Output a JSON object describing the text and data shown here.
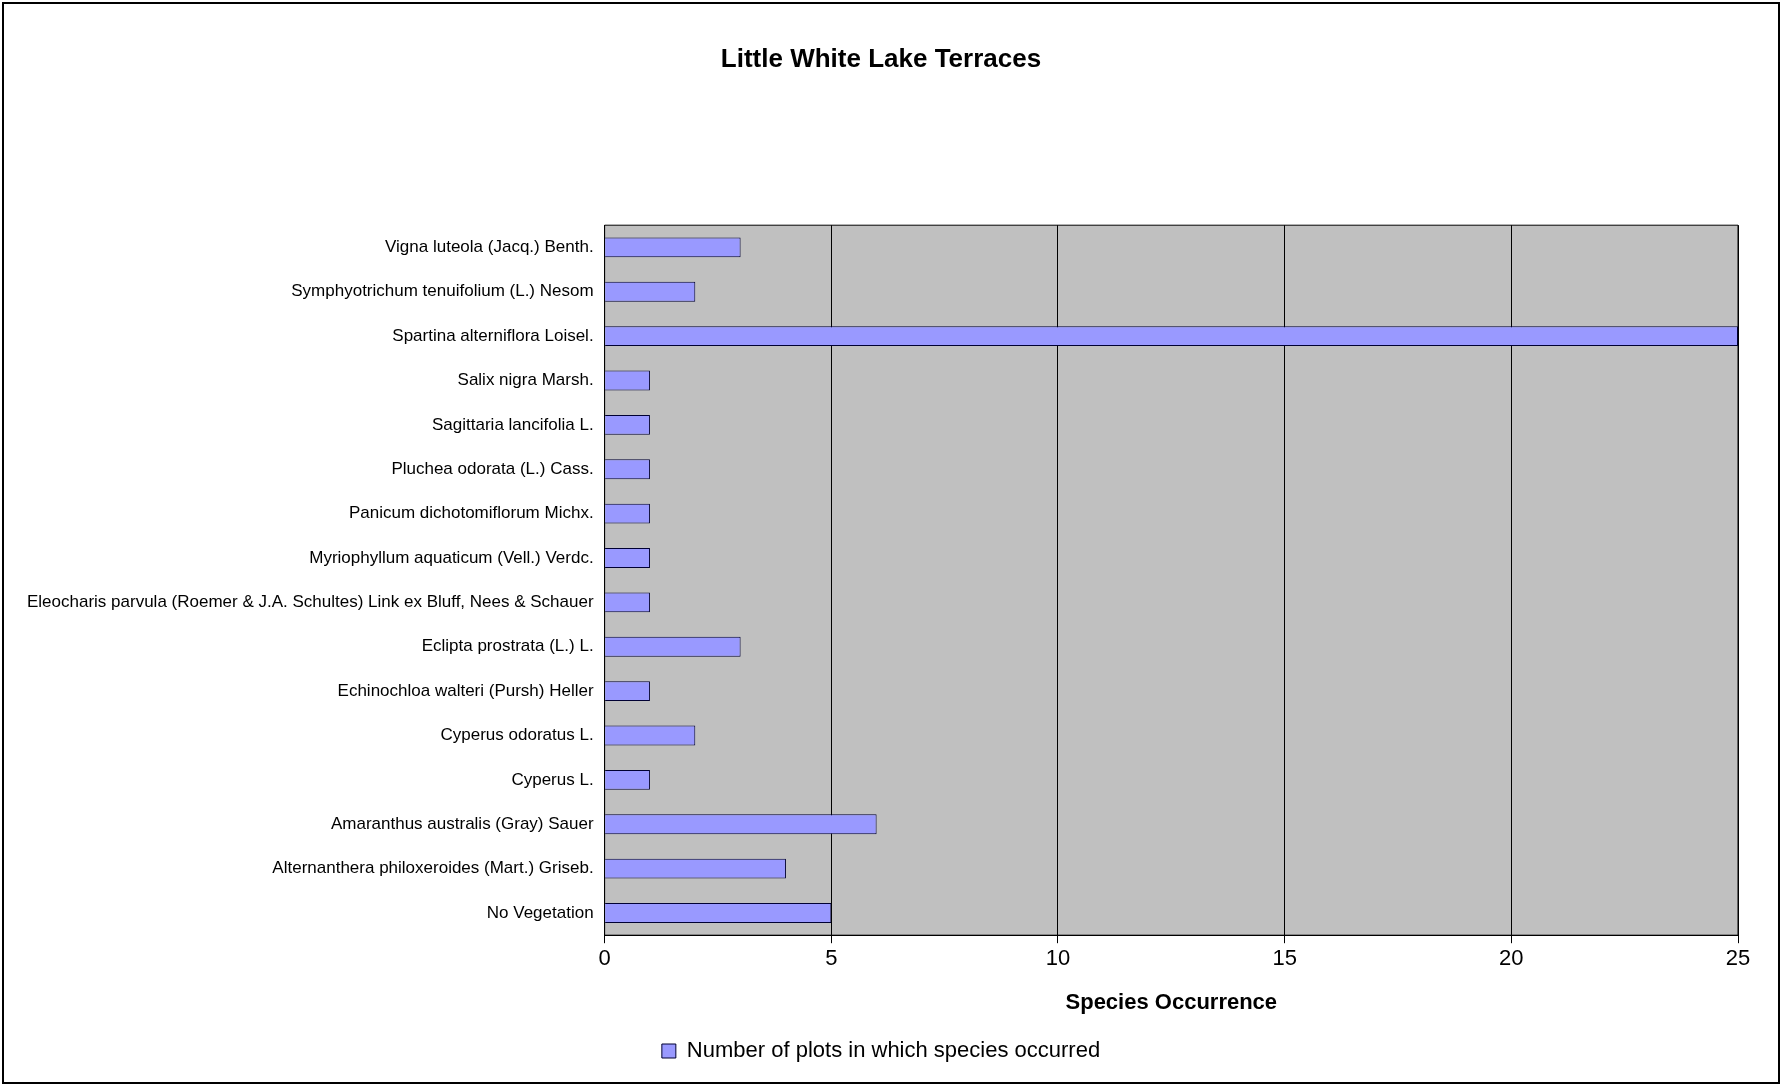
{
  "chart_data": {
    "type": "bar",
    "orientation": "horizontal",
    "title": "Little White Lake Terraces",
    "xlabel": "Species Occurrence",
    "categories": [
      "Vigna luteola (Jacq.) Benth.",
      "Symphyotrichum tenuifolium (L.) Nesom",
      "Spartina alterniflora Loisel.",
      "Salix nigra Marsh.",
      "Sagittaria lancifolia L.",
      "Pluchea odorata (L.) Cass.",
      "Panicum dichotomiflorum Michx.",
      "Myriophyllum aquaticum (Vell.) Verdc.",
      "Eleocharis parvula (Roemer & J.A. Schultes) Link ex Bluff, Nees & Schauer",
      "Eclipta prostrata (L.) L.",
      "Echinochloa walteri (Pursh) Heller",
      "Cyperus odoratus L.",
      "Cyperus L.",
      "Amaranthus australis (Gray) Sauer",
      "Alternanthera philoxeroides (Mart.) Griseb.",
      "No Vegetation"
    ],
    "series": [
      {
        "name": "Number of plots in which species occurred",
        "color": "#9999ff",
        "values": [
          3,
          2,
          25,
          1,
          1,
          1,
          1,
          1,
          1,
          3,
          1,
          2,
          1,
          6,
          4,
          5
        ]
      }
    ],
    "xlim": [
      0,
      25
    ],
    "xticks": [
      0,
      5,
      10,
      15,
      20,
      25
    ],
    "grid": "x",
    "legend": "bottom"
  }
}
